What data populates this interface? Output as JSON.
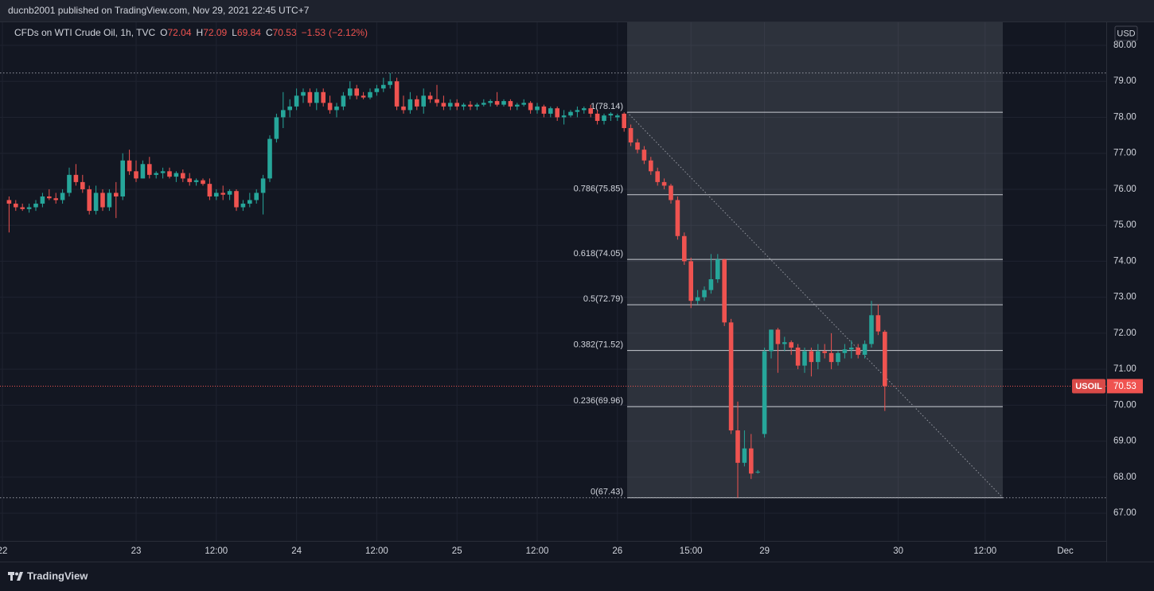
{
  "chart_data": {
    "type": "candlestick",
    "published": "ducnb2001 published on TradingView.com, Nov 29, 2021 22:45 UTC+7",
    "symbol_info": "CFDs on WTI Crude Oil, 1h, TVC",
    "header_labels": {
      "open": "O",
      "high": "H",
      "low": "L",
      "close": "C"
    },
    "change": "−1.53",
    "change_pct": "(−2.12%)",
    "currency": "USD",
    "price_tag_symbol": "USOIL",
    "brand": "TradingView",
    "up_color": "#26a69a",
    "down_color": "#ef5350",
    "grid": true,
    "ylim": [
      66.23,
      80.64
    ],
    "yticks": [
      {
        "value": 80,
        "label": "80.00"
      },
      {
        "value": 79,
        "label": "79.00"
      },
      {
        "value": 78,
        "label": "78.00"
      },
      {
        "value": 77,
        "label": "77.00"
      },
      {
        "value": 76,
        "label": "76.00"
      },
      {
        "value": 75,
        "label": "75.00"
      },
      {
        "value": 74,
        "label": "74.00"
      },
      {
        "value": 73,
        "label": "73.00"
      },
      {
        "value": 72,
        "label": "72.00"
      },
      {
        "value": 71,
        "label": "71.00"
      },
      {
        "value": 70,
        "label": "70.00"
      },
      {
        "value": 69,
        "label": "69.00"
      },
      {
        "value": 68,
        "label": "68.00"
      },
      {
        "value": 67,
        "label": "67.00"
      }
    ],
    "dotted_lines": [
      79.23,
      67.43
    ],
    "fib_levels": [
      {
        "label": "1(78.14)",
        "value": 78.14
      },
      {
        "label": "0.786(75.85)",
        "value": 75.85
      },
      {
        "label": "0.618(74.05)",
        "value": 74.05
      },
      {
        "label": "0.5(72.79)",
        "value": 72.79
      },
      {
        "label": "0.382(71.52)",
        "value": 71.52
      },
      {
        "label": "0.236(69.96)",
        "value": 69.96
      },
      {
        "label": "0(67.43)",
        "value": 67.43
      }
    ],
    "categories": [
      "22",
      null,
      null,
      null,
      null,
      null,
      null,
      null,
      null,
      null,
      null,
      null,
      null,
      null,
      null,
      null,
      null,
      null,
      null,
      null,
      "23",
      null,
      null,
      null,
      null,
      null,
      null,
      null,
      null,
      null,
      null,
      null,
      "12:00",
      null,
      null,
      null,
      null,
      null,
      null,
      null,
      null,
      null,
      null,
      null,
      "24",
      null,
      null,
      null,
      null,
      null,
      null,
      null,
      null,
      null,
      null,
      null,
      "12:00",
      null,
      null,
      null,
      null,
      null,
      null,
      null,
      null,
      null,
      null,
      null,
      "25",
      null,
      null,
      null,
      null,
      null,
      null,
      null,
      null,
      null,
      null,
      null,
      "12:00",
      null,
      null,
      null,
      null,
      null,
      null,
      null,
      null,
      null,
      null,
      null,
      "26",
      null,
      null,
      null,
      null,
      null,
      null,
      null,
      null,
      null,
      null,
      "15:00",
      null,
      null,
      null,
      null,
      null,
      null,
      null,
      null,
      null,
      null,
      "29",
      null,
      null,
      null,
      null,
      null,
      null,
      null,
      null,
      null,
      null,
      null,
      null,
      null,
      null,
      null,
      null,
      null,
      null,
      null,
      "30",
      null,
      null,
      null,
      null,
      null,
      null,
      null,
      null,
      null,
      null,
      null,
      null,
      "12:00",
      null,
      null,
      null,
      null,
      null,
      null,
      null,
      null,
      null,
      null,
      null,
      "Dec",
      null,
      null,
      null,
      null,
      null
    ],
    "ohlc": [
      null,
      [
        75.7,
        75.8,
        74.8,
        75.6
      ],
      [
        75.6,
        75.7,
        75.4,
        75.5
      ],
      [
        75.5,
        75.6,
        75.4,
        75.45
      ],
      [
        75.45,
        75.6,
        75.35,
        75.5
      ],
      [
        75.5,
        75.7,
        75.4,
        75.6
      ],
      [
        75.6,
        75.9,
        75.5,
        75.8
      ],
      [
        75.8,
        76.0,
        75.7,
        75.75
      ],
      [
        75.75,
        75.9,
        75.6,
        75.7
      ],
      [
        75.7,
        76.0,
        75.6,
        75.9
      ],
      [
        75.9,
        76.6,
        75.8,
        76.4
      ],
      [
        76.4,
        76.7,
        76.1,
        76.2
      ],
      [
        76.2,
        76.4,
        75.9,
        76.0
      ],
      [
        76.0,
        76.1,
        75.3,
        75.4
      ],
      [
        75.4,
        76.1,
        75.3,
        75.9
      ],
      [
        75.9,
        76.0,
        75.4,
        75.5
      ],
      [
        75.5,
        76.0,
        75.4,
        75.9
      ],
      [
        75.9,
        76.2,
        75.2,
        75.8
      ],
      [
        75.8,
        77.0,
        75.7,
        76.8
      ],
      [
        76.8,
        77.1,
        76.4,
        76.5
      ],
      [
        76.5,
        76.8,
        76.2,
        76.3
      ],
      [
        76.3,
        76.8,
        76.3,
        76.7
      ],
      [
        76.7,
        76.9,
        76.3,
        76.4
      ],
      [
        76.4,
        76.5,
        76.3,
        76.45
      ],
      [
        76.45,
        76.6,
        76.3,
        76.5
      ],
      [
        76.5,
        76.6,
        76.3,
        76.35
      ],
      [
        76.35,
        76.5,
        76.2,
        76.45
      ],
      [
        76.45,
        76.55,
        76.2,
        76.3
      ],
      [
        76.3,
        76.45,
        76.1,
        76.2
      ],
      [
        76.2,
        76.3,
        76.1,
        76.25
      ],
      [
        76.25,
        76.3,
        76.1,
        76.15
      ],
      [
        76.15,
        76.3,
        75.7,
        75.8
      ],
      [
        75.8,
        76.0,
        75.7,
        75.9
      ],
      [
        75.9,
        76.1,
        75.7,
        75.85
      ],
      [
        75.85,
        76.0,
        75.7,
        75.95
      ],
      [
        75.95,
        76.0,
        75.4,
        75.5
      ],
      [
        75.5,
        75.7,
        75.4,
        75.6
      ],
      [
        75.6,
        75.9,
        75.5,
        75.7
      ],
      [
        75.7,
        76.0,
        75.6,
        75.9
      ],
      [
        75.9,
        76.4,
        75.3,
        76.3
      ],
      [
        76.3,
        77.5,
        76.2,
        77.4
      ],
      [
        77.4,
        78.1,
        77.3,
        78.0
      ],
      [
        78.0,
        78.7,
        77.7,
        78.2
      ],
      [
        78.2,
        78.5,
        78.0,
        78.3
      ],
      [
        78.3,
        78.8,
        78.2,
        78.6
      ],
      [
        78.6,
        78.8,
        78.4,
        78.7
      ],
      [
        78.7,
        78.8,
        78.3,
        78.4
      ],
      [
        78.4,
        78.8,
        78.2,
        78.7
      ],
      [
        78.7,
        78.8,
        78.3,
        78.4
      ],
      [
        78.4,
        78.6,
        78.1,
        78.2
      ],
      [
        78.2,
        78.4,
        78.0,
        78.3
      ],
      [
        78.3,
        78.7,
        78.2,
        78.6
      ],
      [
        78.6,
        79.0,
        78.5,
        78.8
      ],
      [
        78.8,
        78.9,
        78.5,
        78.6
      ],
      [
        78.6,
        78.7,
        78.5,
        78.55
      ],
      [
        78.55,
        78.8,
        78.5,
        78.7
      ],
      [
        78.7,
        78.9,
        78.6,
        78.8
      ],
      [
        78.8,
        79.1,
        78.7,
        78.9
      ],
      [
        78.9,
        79.23,
        78.8,
        79.0
      ],
      [
        79.0,
        79.1,
        78.2,
        78.3
      ],
      [
        78.3,
        78.6,
        78.1,
        78.2
      ],
      [
        78.2,
        78.7,
        78.1,
        78.5
      ],
      [
        78.5,
        78.6,
        78.2,
        78.3
      ],
      [
        78.3,
        78.8,
        78.1,
        78.6
      ],
      [
        78.6,
        78.7,
        78.4,
        78.5
      ],
      [
        78.5,
        78.9,
        78.3,
        78.4
      ],
      [
        78.4,
        78.6,
        78.2,
        78.3
      ],
      [
        78.3,
        78.5,
        78.2,
        78.4
      ],
      [
        78.4,
        78.5,
        78.2,
        78.3
      ],
      [
        78.3,
        78.4,
        78.2,
        78.35
      ],
      [
        78.35,
        78.45,
        78.2,
        78.3
      ],
      [
        78.3,
        78.4,
        78.2,
        78.35
      ],
      [
        78.35,
        78.5,
        78.3,
        78.4
      ],
      [
        78.4,
        78.5,
        78.3,
        78.45
      ],
      [
        78.45,
        78.7,
        78.3,
        78.35
      ],
      [
        78.35,
        78.5,
        78.3,
        78.45
      ],
      [
        78.45,
        78.5,
        78.2,
        78.3
      ],
      [
        78.3,
        78.4,
        78.2,
        78.35
      ],
      [
        78.35,
        78.5,
        78.3,
        78.4
      ],
      [
        78.4,
        78.45,
        78.1,
        78.2
      ],
      [
        78.2,
        78.4,
        78.1,
        78.3
      ],
      [
        78.3,
        78.35,
        78.0,
        78.1
      ],
      [
        78.1,
        78.3,
        78.0,
        78.25
      ],
      [
        78.25,
        78.3,
        77.9,
        78.0
      ],
      [
        78.0,
        78.2,
        77.8,
        78.05
      ],
      [
        78.05,
        78.2,
        78.0,
        78.15
      ],
      [
        78.15,
        78.3,
        78.0,
        78.2
      ],
      [
        78.2,
        78.3,
        78.1,
        78.25
      ],
      [
        78.25,
        78.35,
        78.0,
        78.1
      ],
      [
        78.1,
        78.2,
        77.8,
        77.9
      ],
      [
        77.9,
        78.1,
        77.8,
        78.05
      ],
      [
        78.05,
        78.14,
        77.9,
        78.1
      ],
      [
        78.0,
        78.1,
        77.9,
        78.05
      ],
      [
        78.1,
        78.14,
        77.6,
        77.7
      ],
      [
        77.7,
        77.8,
        77.2,
        77.3
      ],
      [
        77.3,
        77.4,
        77.0,
        77.1
      ],
      [
        77.1,
        77.2,
        76.7,
        76.8
      ],
      [
        76.8,
        76.9,
        76.4,
        76.5
      ],
      [
        76.5,
        76.6,
        76.1,
        76.2
      ],
      [
        76.2,
        76.3,
        76.0,
        76.1
      ],
      [
        76.1,
        76.15,
        75.6,
        75.7
      ],
      [
        75.7,
        75.8,
        74.6,
        74.7
      ],
      [
        74.7,
        74.8,
        73.9,
        74.0
      ],
      [
        74.0,
        74.1,
        72.7,
        72.9
      ],
      [
        72.9,
        73.2,
        72.8,
        73.0
      ],
      [
        73.0,
        73.3,
        72.9,
        73.2
      ],
      [
        73.2,
        74.2,
        73.1,
        73.5
      ],
      [
        73.5,
        74.2,
        73.4,
        74.05
      ],
      [
        74.05,
        74.07,
        72.2,
        72.3
      ],
      [
        72.3,
        72.4,
        69.2,
        69.3
      ],
      [
        69.3,
        70.1,
        67.43,
        68.4
      ],
      [
        68.4,
        69.3,
        68.3,
        68.8
      ],
      [
        68.8,
        69.2,
        67.95,
        68.1
      ],
      [
        68.15,
        68.2,
        68.1,
        68.15
      ],
      [
        69.2,
        71.6,
        69.1,
        71.5
      ],
      [
        71.5,
        72.1,
        71.3,
        72.1
      ],
      [
        72.1,
        72.15,
        70.9,
        71.7
      ],
      [
        71.7,
        71.9,
        71.5,
        71.75
      ],
      [
        71.75,
        71.8,
        71.4,
        71.6
      ],
      [
        71.6,
        71.7,
        71.0,
        71.1
      ],
      [
        71.1,
        71.6,
        70.9,
        71.5
      ],
      [
        71.5,
        71.6,
        70.8,
        71.2
      ],
      [
        71.2,
        71.7,
        71.0,
        71.5
      ],
      [
        71.5,
        71.7,
        71.3,
        71.45
      ],
      [
        71.45,
        72.0,
        71.0,
        71.2
      ],
      [
        71.2,
        71.5,
        71.1,
        71.45
      ],
      [
        71.45,
        71.7,
        71.3,
        71.55
      ],
      [
        71.55,
        71.8,
        71.3,
        71.6
      ],
      [
        71.6,
        71.7,
        71.3,
        71.4
      ],
      [
        71.4,
        71.8,
        71.3,
        71.7
      ],
      [
        71.7,
        72.9,
        71.6,
        72.5
      ],
      [
        72.5,
        72.8,
        71.95,
        72.05
      ],
      [
        72.04,
        72.09,
        69.84,
        70.53
      ],
      null,
      null,
      null,
      null,
      null,
      null,
      null,
      null,
      null,
      null,
      null,
      null,
      null,
      null,
      null,
      null,
      null,
      null,
      null,
      null,
      null,
      null,
      null,
      null,
      null,
      null,
      null,
      null,
      null,
      null,
      null,
      null
    ]
  }
}
